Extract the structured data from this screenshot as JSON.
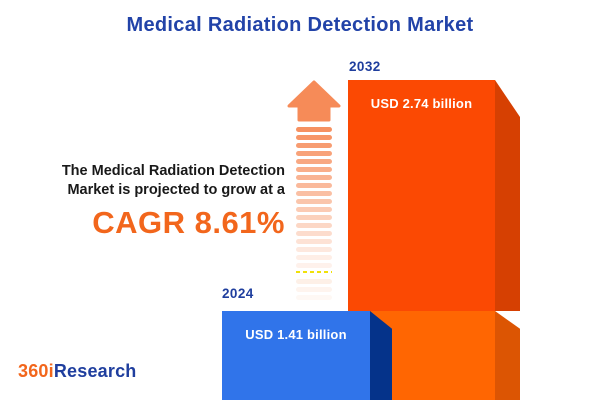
{
  "title": "Medical Radiation Detection Market",
  "annotation": {
    "line1": "The Medical Radiation Detection",
    "line2": "Market is projected to grow at a",
    "cagr_label": "CAGR 8.61%"
  },
  "bars": {
    "y2032": {
      "year": "2032",
      "value_label": "USD 2.74 billion"
    },
    "y2024": {
      "year": "2024",
      "value_label": "USD 1.41 billion"
    }
  },
  "logo": {
    "part1": "360i",
    "part2": "Research"
  },
  "colors": {
    "title_navy": "#2243A8",
    "year_navy": "#1F3E9E",
    "accent_orange": "#F2661C",
    "bar2032_front": "#FB4903",
    "bar2032_side": "#D64002",
    "bar2032_base_front": "#FF6602",
    "bar2032_base_side": "#DC5503",
    "bar2024_front": "#3074EA",
    "bar2024_side": "#05338A",
    "arrow_salmon": "#F68B58",
    "yellow_dash": "#F0E10A"
  },
  "chart_data": {
    "type": "bar",
    "title": "Medical Radiation Detection Market",
    "categories": [
      "2024",
      "2032"
    ],
    "values": [
      1.41,
      2.74
    ],
    "value_labels": [
      "USD 1.41 billion",
      "USD 2.74 billion"
    ],
    "unit": "USD billion",
    "cagr_percent": 8.61,
    "xlabel": "",
    "ylabel": "",
    "grid": false,
    "legend": false,
    "bar_colors": [
      "#3074EA",
      "#FB4903"
    ],
    "style": "3d-infographic, growth arrow between bars"
  }
}
